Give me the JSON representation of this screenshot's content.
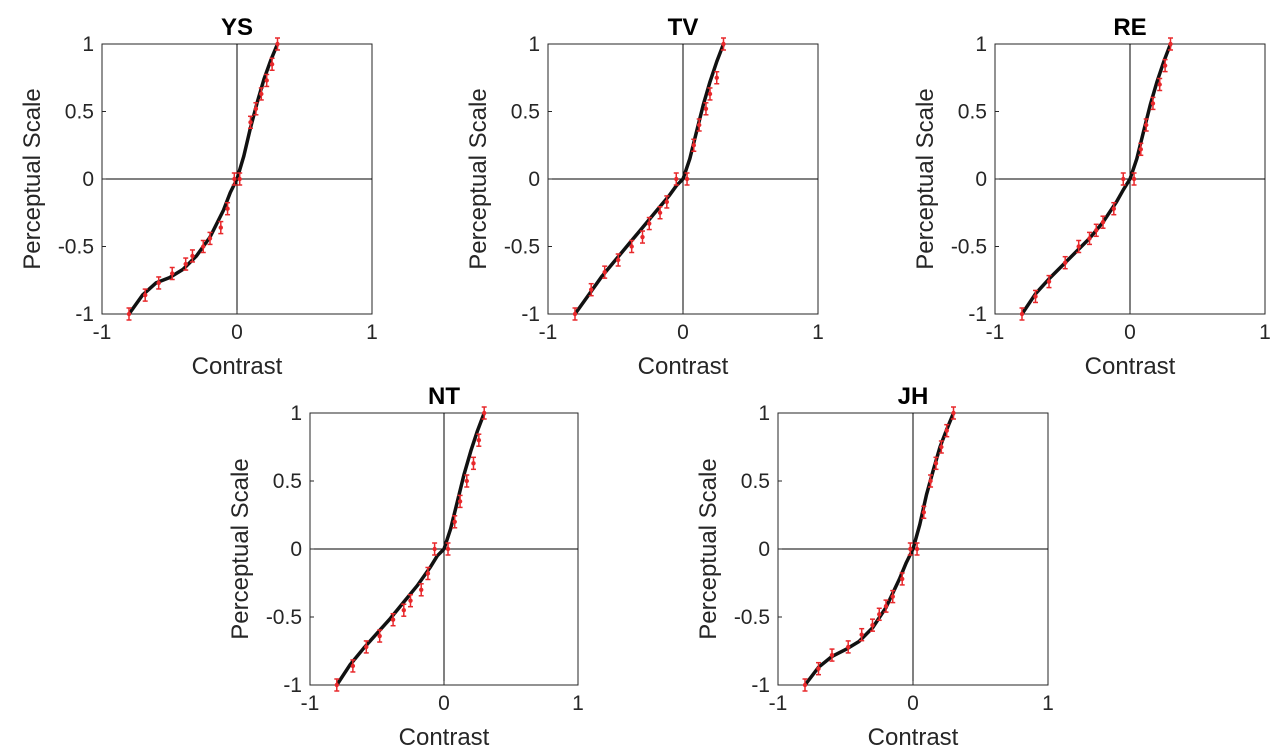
{
  "colors": {
    "fit_line": "#111111",
    "data_points": "#e8282b",
    "axis_text": "#262626"
  },
  "chart_data": [
    {
      "type": "line",
      "title": "YS",
      "xlabel": "Contrast",
      "ylabel": "Perceptual Scale",
      "xlim": [
        -1,
        1
      ],
      "ylim": [
        -1,
        1
      ],
      "xticks": [
        "-1",
        "0",
        "1"
      ],
      "yticks": [
        "-1",
        "-0.5",
        "0",
        "0.5",
        "1"
      ],
      "series": [
        {
          "kind": "fit",
          "x": [
            -0.8,
            -0.7,
            -0.6,
            -0.5,
            -0.4,
            -0.3,
            -0.2,
            -0.1,
            -0.05,
            0,
            0.05,
            0.1,
            0.15,
            0.2,
            0.25,
            0.3
          ],
          "y": [
            -1,
            -0.86,
            -0.77,
            -0.73,
            -0.67,
            -0.57,
            -0.43,
            -0.23,
            -0.1,
            0,
            0.17,
            0.38,
            0.57,
            0.74,
            0.88,
            1
          ]
        },
        {
          "kind": "data",
          "x": [
            -0.8,
            -0.68,
            -0.58,
            -0.48,
            -0.38,
            -0.33,
            -0.25,
            -0.2,
            -0.12,
            -0.07,
            -0.02,
            0.02,
            0.1,
            0.14,
            0.18,
            0.22,
            0.26,
            0.3
          ],
          "y": [
            -1,
            -0.86,
            -0.77,
            -0.7,
            -0.63,
            -0.57,
            -0.5,
            -0.44,
            -0.36,
            -0.22,
            0,
            0,
            0.42,
            0.52,
            0.63,
            0.73,
            0.85,
            1
          ]
        }
      ]
    },
    {
      "type": "line",
      "title": "TV",
      "xlabel": "Contrast",
      "ylabel": "Perceptual Scale",
      "xlim": [
        -1,
        1
      ],
      "ylim": [
        -1,
        1
      ],
      "xticks": [
        "-1",
        "0",
        "1"
      ],
      "yticks": [
        "-1",
        "-0.5",
        "0",
        "0.5",
        "1"
      ],
      "series": [
        {
          "kind": "fit",
          "x": [
            -0.8,
            -0.7,
            -0.6,
            -0.5,
            -0.4,
            -0.3,
            -0.2,
            -0.1,
            -0.05,
            0,
            0.05,
            0.1,
            0.15,
            0.2,
            0.25,
            0.3
          ],
          "y": [
            -1,
            -0.86,
            -0.72,
            -0.6,
            -0.48,
            -0.36,
            -0.24,
            -0.12,
            -0.05,
            0,
            0.15,
            0.35,
            0.55,
            0.72,
            0.87,
            1
          ]
        },
        {
          "kind": "data",
          "x": [
            -0.8,
            -0.68,
            -0.58,
            -0.48,
            -0.38,
            -0.3,
            -0.25,
            -0.17,
            -0.12,
            -0.05,
            0.03,
            0.08,
            0.12,
            0.17,
            0.2,
            0.25,
            0.3
          ],
          "y": [
            -1,
            -0.82,
            -0.69,
            -0.6,
            -0.5,
            -0.43,
            -0.33,
            -0.25,
            -0.17,
            0,
            0,
            0.25,
            0.4,
            0.52,
            0.63,
            0.75,
            1
          ]
        }
      ]
    },
    {
      "type": "line",
      "title": "RE",
      "xlabel": "Contrast",
      "ylabel": "Perceptual Scale",
      "xlim": [
        -1,
        1
      ],
      "ylim": [
        -1,
        1
      ],
      "xticks": [
        "-1",
        "0",
        "1"
      ],
      "yticks": [
        "-1",
        "-0.5",
        "0",
        "0.5",
        "1"
      ],
      "series": [
        {
          "kind": "fit",
          "x": [
            -0.8,
            -0.7,
            -0.6,
            -0.5,
            -0.4,
            -0.3,
            -0.2,
            -0.1,
            -0.05,
            0,
            0.05,
            0.1,
            0.15,
            0.2,
            0.25,
            0.3
          ],
          "y": [
            -1,
            -0.85,
            -0.74,
            -0.64,
            -0.54,
            -0.44,
            -0.32,
            -0.17,
            -0.08,
            0,
            0.15,
            0.35,
            0.55,
            0.72,
            0.87,
            1
          ]
        },
        {
          "kind": "data",
          "x": [
            -0.8,
            -0.7,
            -0.6,
            -0.48,
            -0.38,
            -0.3,
            -0.25,
            -0.2,
            -0.12,
            -0.05,
            0.03,
            0.08,
            0.12,
            0.17,
            0.22,
            0.26,
            0.3
          ],
          "y": [
            -1,
            -0.87,
            -0.76,
            -0.62,
            -0.5,
            -0.44,
            -0.38,
            -0.32,
            -0.22,
            0,
            0,
            0.22,
            0.4,
            0.56,
            0.7,
            0.84,
            1
          ]
        }
      ]
    },
    {
      "type": "line",
      "title": "NT",
      "xlabel": "Contrast",
      "ylabel": "Perceptual Scale",
      "xlim": [
        -1,
        1
      ],
      "ylim": [
        -1,
        1
      ],
      "xticks": [
        "-1",
        "0",
        "1"
      ],
      "yticks": [
        "-1",
        "-0.5",
        "0",
        "0.5",
        "1"
      ],
      "series": [
        {
          "kind": "fit",
          "x": [
            -0.8,
            -0.7,
            -0.6,
            -0.5,
            -0.4,
            -0.3,
            -0.2,
            -0.1,
            -0.05,
            0,
            0.05,
            0.1,
            0.15,
            0.2,
            0.25,
            0.3
          ],
          "y": [
            -1,
            -0.85,
            -0.73,
            -0.62,
            -0.51,
            -0.39,
            -0.27,
            -0.13,
            -0.05,
            0,
            0.15,
            0.35,
            0.55,
            0.72,
            0.87,
            1
          ]
        },
        {
          "kind": "data",
          "x": [
            -0.8,
            -0.68,
            -0.58,
            -0.48,
            -0.38,
            -0.3,
            -0.25,
            -0.17,
            -0.12,
            -0.07,
            0.03,
            0.08,
            0.12,
            0.17,
            0.22,
            0.26,
            0.3
          ],
          "y": [
            -1,
            -0.86,
            -0.72,
            -0.64,
            -0.52,
            -0.45,
            -0.38,
            -0.3,
            -0.18,
            0,
            0,
            0.2,
            0.35,
            0.5,
            0.63,
            0.8,
            1
          ]
        }
      ]
    },
    {
      "type": "line",
      "title": "JH",
      "xlabel": "Contrast",
      "ylabel": "Perceptual Scale",
      "xlim": [
        -1,
        1
      ],
      "ylim": [
        -1,
        1
      ],
      "xticks": [
        "-1",
        "0",
        "1"
      ],
      "yticks": [
        "-1",
        "-0.5",
        "0",
        "0.5",
        "1"
      ],
      "series": [
        {
          "kind": "fit",
          "x": [
            -0.8,
            -0.7,
            -0.6,
            -0.5,
            -0.4,
            -0.3,
            -0.2,
            -0.1,
            -0.05,
            0,
            0.05,
            0.1,
            0.15,
            0.2,
            0.25,
            0.3
          ],
          "y": [
            -1,
            -0.87,
            -0.79,
            -0.74,
            -0.68,
            -0.58,
            -0.43,
            -0.22,
            -0.1,
            0,
            0.18,
            0.4,
            0.58,
            0.75,
            0.88,
            1
          ]
        },
        {
          "kind": "data",
          "x": [
            -0.8,
            -0.7,
            -0.6,
            -0.48,
            -0.38,
            -0.3,
            -0.25,
            -0.2,
            -0.15,
            -0.08,
            -0.02,
            0.03,
            0.08,
            0.13,
            0.17,
            0.21,
            0.25,
            0.3
          ],
          "y": [
            -1,
            -0.88,
            -0.78,
            -0.72,
            -0.63,
            -0.56,
            -0.48,
            -0.42,
            -0.35,
            -0.22,
            0,
            0,
            0.27,
            0.5,
            0.63,
            0.75,
            0.87,
            1
          ]
        }
      ]
    }
  ]
}
